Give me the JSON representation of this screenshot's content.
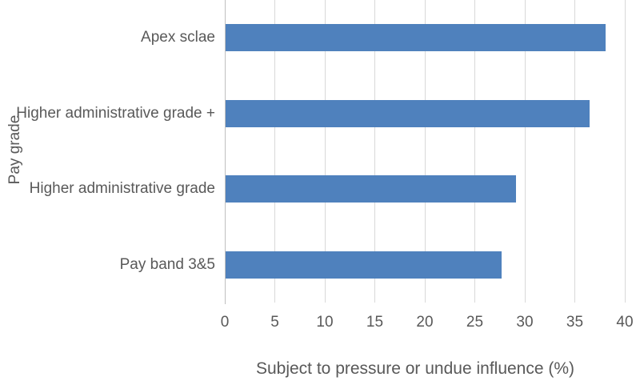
{
  "chart_data": {
    "type": "bar",
    "orientation": "horizontal",
    "categories": [
      "Apex sclae",
      "Higher administrative grade +",
      "Higher administrative grade",
      "Pay band 3&5"
    ],
    "values": [
      38,
      36.4,
      29,
      27.6
    ],
    "xlabel": "Subject to pressure or undue influence (%)",
    "ylabel": "Pay grade",
    "xlim": [
      0,
      40
    ],
    "xticks": [
      0,
      5,
      10,
      15,
      20,
      25,
      30,
      35,
      40
    ],
    "grid": true,
    "legend_position": "none",
    "colors": {
      "bar": "#4F81BD",
      "gridline": "#D9D9D9",
      "axis_line": "#BFBFBF",
      "text": "#595959"
    }
  }
}
